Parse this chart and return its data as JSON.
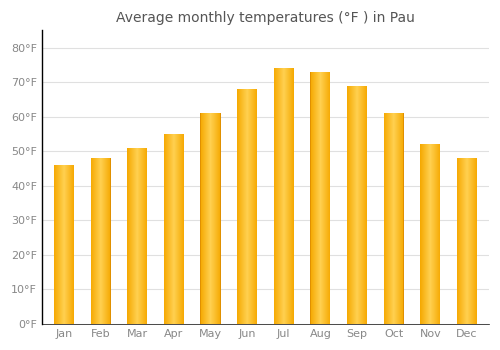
{
  "months": [
    "Jan",
    "Feb",
    "Mar",
    "Apr",
    "May",
    "Jun",
    "Jul",
    "Aug",
    "Sep",
    "Oct",
    "Nov",
    "Dec"
  ],
  "values": [
    46,
    48,
    51,
    55,
    61,
    68,
    74,
    73,
    69,
    61,
    52,
    48
  ],
  "bar_color_left": "#F5A800",
  "bar_color_center": "#FFD050",
  "bar_color_right": "#F5A800",
  "title": "Average monthly temperatures (°F ) in Pau",
  "ytick_labels": [
    "0°F",
    "10°F",
    "20°F",
    "30°F",
    "40°F",
    "50°F",
    "60°F",
    "70°F",
    "80°F"
  ],
  "ytick_values": [
    0,
    10,
    20,
    30,
    40,
    50,
    60,
    70,
    80
  ],
  "ylim": [
    0,
    85
  ],
  "background_color": "#ffffff",
  "plot_bg_color": "#ffffff",
  "grid_color": "#e0e0e0",
  "axis_color": "#000000",
  "tick_color": "#888888",
  "title_fontsize": 10,
  "tick_fontsize": 8,
  "bar_width": 0.55
}
